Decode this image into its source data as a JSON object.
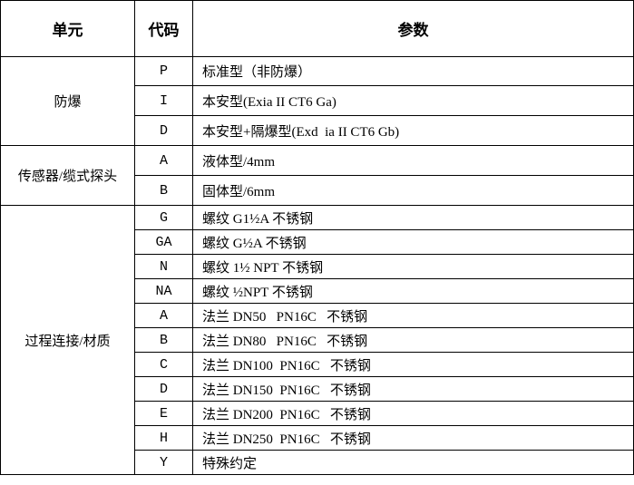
{
  "table": {
    "header": [
      "单元",
      "代码",
      "参数"
    ],
    "groups": [
      {
        "unit": "防爆",
        "rows": [
          {
            "code": "P",
            "param": "标准型（非防爆）"
          },
          {
            "code": "I",
            "param": "本安型(Exia II CT6 Ga)"
          },
          {
            "code": "D",
            "param": "本安型+隔爆型(Exd  ia II CT6 Gb)"
          }
        ]
      },
      {
        "unit": "传感器/缆式探头",
        "rows": [
          {
            "code": "A",
            "param": "液体型/4mm"
          },
          {
            "code": "B",
            "param": "固体型/6mm"
          }
        ]
      },
      {
        "unit": "过程连接/材质",
        "rows": [
          {
            "code": "G",
            "param": "螺纹 G1½A 不锈钢"
          },
          {
            "code": "GA",
            "param": "螺纹 G½A 不锈钢"
          },
          {
            "code": "N",
            "param": "螺纹 1½ NPT 不锈钢"
          },
          {
            "code": "NA",
            "param": "螺纹 ½NPT 不锈钢"
          },
          {
            "code": "A",
            "param": "法兰 DN50   PN16C   不锈钢"
          },
          {
            "code": "B",
            "param": "法兰 DN80   PN16C   不锈钢"
          },
          {
            "code": "C",
            "param": "法兰 DN100  PN16C   不锈钢"
          },
          {
            "code": "D",
            "param": "法兰 DN150  PN16C   不锈钢"
          },
          {
            "code": "E",
            "param": "法兰 DN200  PN16C   不锈钢"
          },
          {
            "code": "H",
            "param": "法兰 DN250  PN16C   不锈钢"
          },
          {
            "code": "Y",
            "param": "特殊约定"
          }
        ]
      }
    ]
  }
}
